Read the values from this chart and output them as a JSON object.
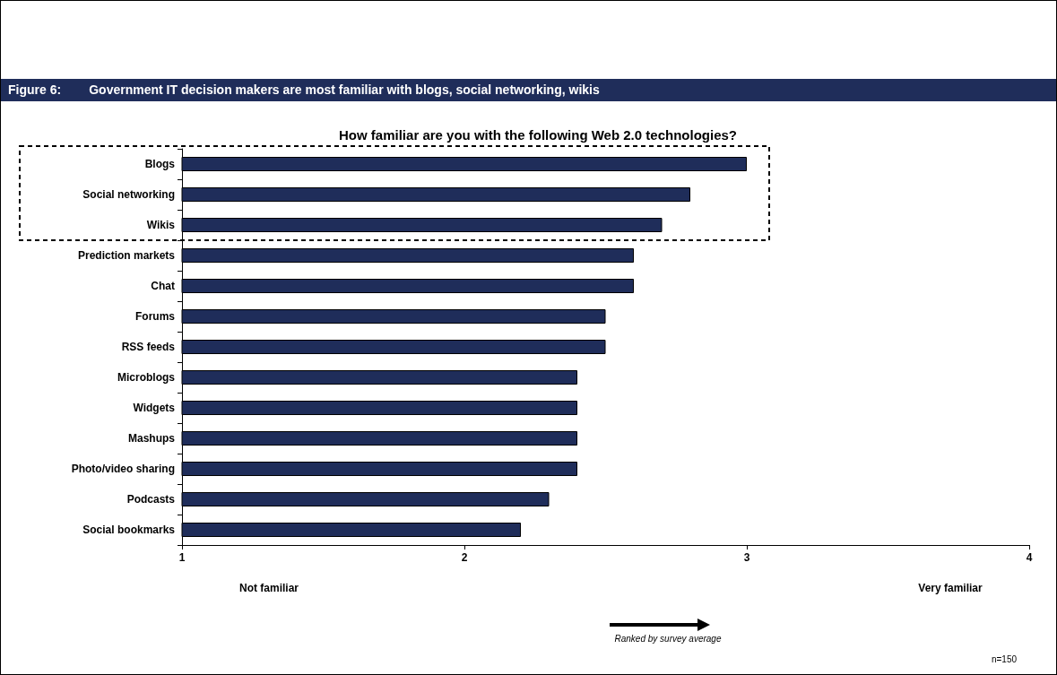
{
  "chart_data": {
    "type": "bar",
    "orientation": "horizontal",
    "title": "Figure 6:        Government IT decision makers are most familiar with blogs, social networking, wikis",
    "subtitle": "How familiar are you with the following Web 2.0 technologies?",
    "categories": [
      "Blogs",
      "Social networking",
      "Wikis",
      "Prediction markets",
      "Chat",
      "Forums",
      "RSS feeds",
      "Microblogs",
      "Widgets",
      "Mashups",
      "Photo/video sharing",
      "Podcasts",
      "Social bookmarks"
    ],
    "values": [
      3.0,
      2.8,
      2.7,
      2.6,
      2.6,
      2.5,
      2.5,
      2.4,
      2.4,
      2.4,
      2.4,
      2.3,
      2.2
    ],
    "color": "#1f2d5a",
    "xlim": [
      1,
      4
    ],
    "xticks": [
      1,
      2,
      3,
      4
    ],
    "grid": false,
    "annotations": [
      "Not familiar",
      "Very familiar",
      "Ranked by survey average",
      "n=150"
    ]
  }
}
